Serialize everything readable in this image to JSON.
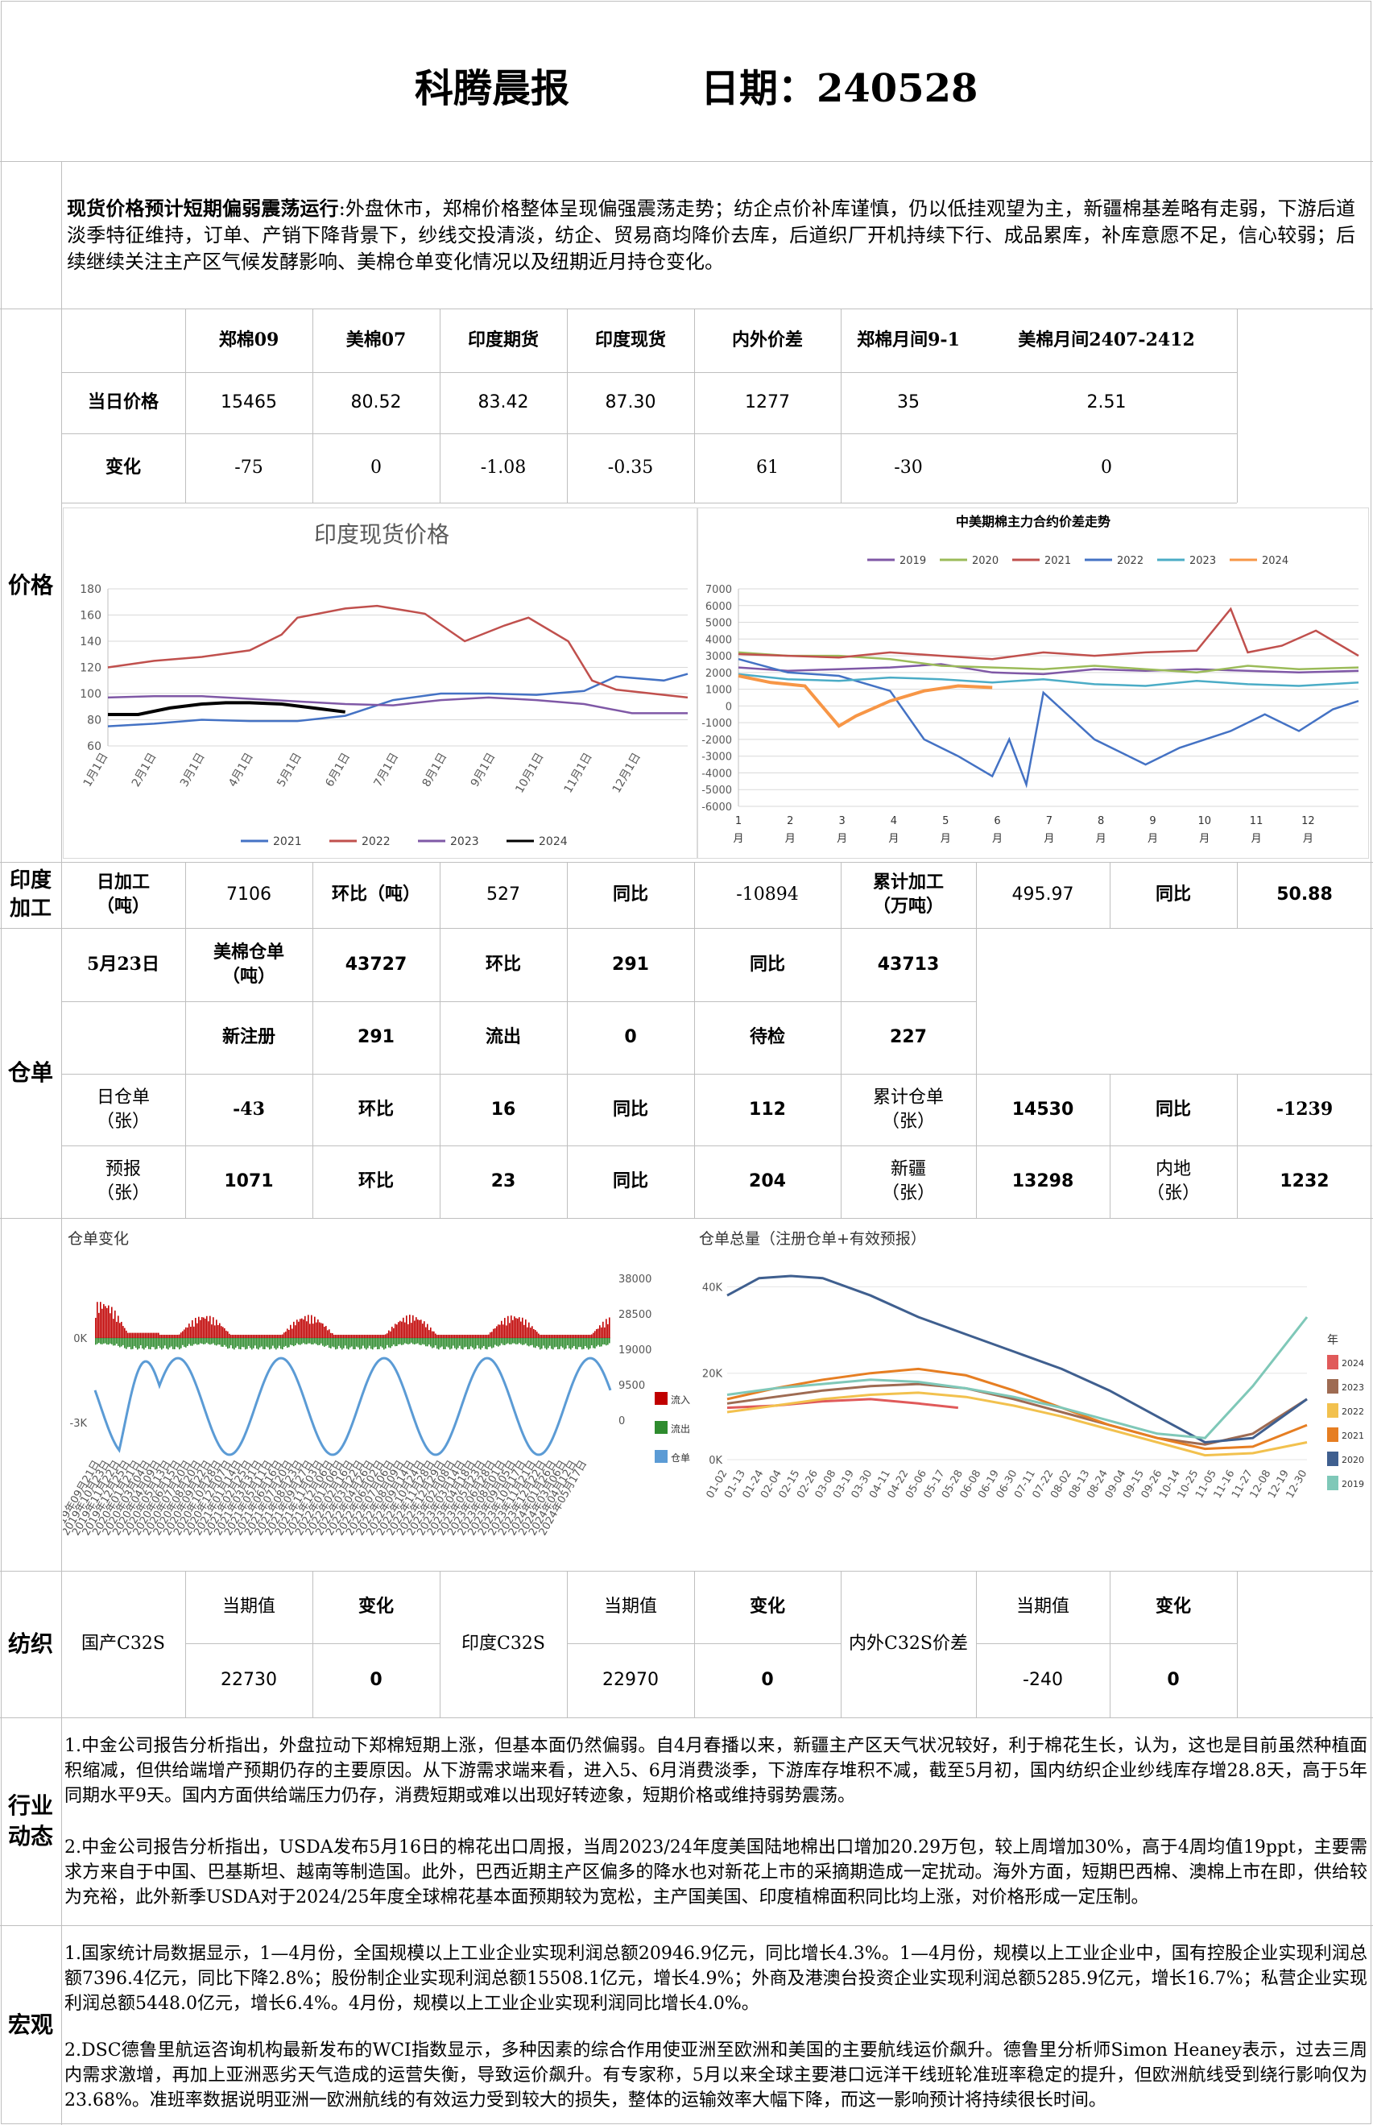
{
  "header": {
    "title": "科腾晨报",
    "date_label": "日期：240528"
  },
  "summary": {
    "lead": "现货价格预计短期偏弱震荡运行",
    "text": ":外盘休市，郑棉价格整体呈现偏强震荡走势；纺企点价补库谨慎，仍以低挂观望为主，新疆棉基差略有走弱，下游后道淡季特征维持，订单、产销下降背景下，纱线交投清淡，纺企、贸易商均降价去库，后道织厂开机持续下行、成品累库，补库意愿不足，信心较弱；后续继续关注主产区气候发酵影响、美棉仓单变化情况以及纽期近月持仓变化。"
  },
  "sections": {
    "price": "价格",
    "processing": "印度加工",
    "warehouse": "仓单",
    "textile": "纺织",
    "industry": "行业动态",
    "macro": "宏观"
  },
  "price_table": {
    "headers": [
      "郑棉09",
      "美棉07",
      "印度期货",
      "印度现货",
      "内外价差",
      "郑棉月间9-1",
      "美棉月间2407-2412"
    ],
    "row1_label": "当日价格",
    "row1": [
      "15465",
      "80.52",
      "83.42",
      "87.30",
      "1277",
      "35",
      "2.51"
    ],
    "row2_label": "变化",
    "row2": [
      "-75",
      "0",
      "-1.08",
      "-0.35",
      "61",
      "-30",
      "0"
    ]
  },
  "india_chart": {
    "chart_data": {
      "type": "line",
      "title": "印度现货价格",
      "x_ticks": [
        "1月1日",
        "2月1日",
        "3月1日",
        "4月1日",
        "5月1日",
        "6月1日",
        "7月1日",
        "8月1日",
        "9月1日",
        "10月1日",
        "11月1日",
        "12月1日"
      ],
      "ylim": [
        60,
        180
      ],
      "y_ticks": [
        60,
        80,
        100,
        120,
        140,
        160,
        180
      ],
      "legend_position": "bottom",
      "series": [
        {
          "name": "2021",
          "color": "#4472c4",
          "x": [
            1,
            30,
            60,
            90,
            120,
            150,
            180,
            210,
            240,
            270,
            300,
            320,
            350,
            365
          ],
          "y": [
            75,
            77,
            80,
            79,
            79,
            83,
            95,
            100,
            100,
            99,
            102,
            113,
            110,
            115
          ]
        },
        {
          "name": "2022",
          "color": "#c0504d",
          "x": [
            1,
            30,
            60,
            90,
            110,
            120,
            150,
            170,
            200,
            225,
            250,
            265,
            290,
            305,
            320,
            350,
            365
          ],
          "y": [
            120,
            125,
            128,
            133,
            145,
            158,
            165,
            167,
            161,
            140,
            152,
            158,
            140,
            110,
            103,
            99,
            97
          ]
        },
        {
          "name": "2023",
          "color": "#7f58a6",
          "x": [
            1,
            30,
            60,
            90,
            120,
            150,
            180,
            210,
            240,
            270,
            300,
            330,
            365
          ],
          "y": [
            97,
            98,
            98,
            96,
            94,
            92,
            91,
            95,
            97,
            95,
            92,
            85,
            85
          ]
        },
        {
          "name": "2024",
          "color": "#000000",
          "x": [
            1,
            20,
            40,
            60,
            75,
            90,
            110,
            130,
            150
          ],
          "y": [
            84,
            84,
            89,
            92,
            93,
            93,
            92,
            89,
            86
          ]
        }
      ]
    }
  },
  "spread_chart": {
    "chart_data": {
      "type": "line",
      "title": "中美期棉主力合约价差走势",
      "x_ticks": [
        "1\n月",
        "2\n月",
        "3\n月",
        "4\n月",
        "5\n月",
        "6\n月",
        "7\n月",
        "8\n月",
        "9\n月",
        "10\n月",
        "11\n月",
        "12\n月"
      ],
      "ylim": [
        -6000,
        7000
      ],
      "y_ticks": [
        -6000,
        -5000,
        -4000,
        -3000,
        -2000,
        -1000,
        0,
        1000,
        2000,
        3000,
        4000,
        5000,
        6000,
        7000
      ],
      "legend_position": "top",
      "series": [
        {
          "name": "2019",
          "color": "#7f58a6",
          "x": [
            1,
            30,
            60,
            90,
            120,
            150,
            180,
            210,
            240,
            270,
            300,
            330,
            365
          ],
          "y": [
            2300,
            2100,
            2200,
            2300,
            2500,
            2000,
            1900,
            2200,
            2100,
            2200,
            2100,
            2000,
            2100
          ]
        },
        {
          "name": "2020",
          "color": "#9bbb59",
          "x": [
            1,
            30,
            60,
            90,
            120,
            150,
            180,
            210,
            240,
            270,
            300,
            330,
            365
          ],
          "y": [
            3200,
            3000,
            3000,
            2800,
            2400,
            2300,
            2200,
            2400,
            2200,
            2000,
            2400,
            2200,
            2300
          ]
        },
        {
          "name": "2021",
          "color": "#c0504d",
          "x": [
            1,
            30,
            60,
            90,
            120,
            150,
            180,
            210,
            240,
            270,
            290,
            300,
            320,
            340,
            365
          ],
          "y": [
            3100,
            3000,
            2900,
            3200,
            3000,
            2800,
            3200,
            3000,
            3200,
            3300,
            5800,
            3200,
            3600,
            4500,
            3000
          ]
        },
        {
          "name": "2022",
          "color": "#4472c4",
          "x": [
            1,
            30,
            60,
            90,
            110,
            130,
            150,
            160,
            170,
            180,
            210,
            240,
            260,
            290,
            310,
            330,
            350,
            365
          ],
          "y": [
            2800,
            2000,
            1800,
            900,
            -2000,
            -3000,
            -4200,
            -2000,
            -4700,
            800,
            -2000,
            -3500,
            -2500,
            -1500,
            -500,
            -1500,
            -200,
            300
          ]
        },
        {
          "name": "2023",
          "color": "#4bacc6",
          "x": [
            1,
            30,
            60,
            90,
            120,
            150,
            180,
            210,
            240,
            270,
            300,
            330,
            365
          ],
          "y": [
            1900,
            1600,
            1500,
            1700,
            1600,
            1400,
            1600,
            1300,
            1200,
            1500,
            1300,
            1200,
            1400
          ]
        },
        {
          "name": "2024",
          "color": "#f79646",
          "x": [
            1,
            20,
            40,
            60,
            70,
            90,
            110,
            130,
            150
          ],
          "y": [
            1800,
            1400,
            1200,
            -1200,
            -600,
            300,
            900,
            1200,
            1100
          ]
        }
      ]
    }
  },
  "processing": {
    "daily_label": "日加工\n（吨）",
    "daily": "7106",
    "mom_label": "环比（吨）",
    "mom": "527",
    "yoy_label": "同比",
    "yoy": "-10894",
    "cum_label": "累计加工\n（万吨）",
    "cum": "495.97",
    "cum_yoy_label": "同比",
    "cum_yoy": "50.88"
  },
  "warehouse": {
    "date": "5月23日",
    "us_label": "美棉仓单\n（吨）",
    "us": "43727",
    "us_mom_label": "环比",
    "us_mom": "291",
    "us_yoy_label": "同比",
    "us_yoy": "43713",
    "new_label": "新注册",
    "new": "291",
    "out_label": "流出",
    "out": "0",
    "pending_label": "待检",
    "pending": "227",
    "daily_label": "日仓单\n（张）",
    "daily": "-43",
    "daily_mom_label": "环比",
    "daily_mom": "16",
    "daily_yoy_label": "同比",
    "daily_yoy": "112",
    "cum_label": "累计仓单\n（张）",
    "cum": "14530",
    "cum_yoy_label": "同比",
    "cum_yoy": "-1239",
    "forecast_label": "预报\n（张）",
    "forecast": "1071",
    "forecast_mom_label": "环比",
    "forecast_mom": "23",
    "forecast_yoy_label": "同比",
    "forecast_yoy": "204",
    "xinjiang_label": "新疆\n（张）",
    "xinjiang": "13298",
    "inland_label": "内地\n（张）",
    "inland": "1232"
  },
  "wr_change_chart": {
    "title": "仓单变化",
    "left_ticks": [
      "0K",
      "-3K"
    ],
    "right_ticks": [
      "38000",
      "28500",
      "19000",
      "9500",
      "0"
    ],
    "legend": [
      {
        "name": "流入",
        "color": "#c00000"
      },
      {
        "name": "流出",
        "color": "#2e8b2e"
      },
      {
        "name": "仓单",
        "color": "#5b9bd5"
      }
    ],
    "x_ticks": [
      "2019年09月21日",
      "2019年10月23日",
      "2019年11月22日",
      "2019年12月25日",
      "2020年01月21日",
      "2020年03月04日",
      "2020年04月09日",
      "2020年05月13日",
      "2020年06月15日",
      "2020年07月20日",
      "2020年08月20日",
      "2020年09月22日",
      "2020年10月28日",
      "2020年12月07日",
      "2021年01月14日",
      "2021年02月25日",
      "2021年03月31日",
      "2021年05月11日",
      "2021年06月16日",
      "2021年07月20日",
      "2021年08月23日",
      "2021年09月27日",
      "2021年11月03日",
      "2021年12月06日",
      "2022年01月06日",
      "2022年02月16日",
      "2022年03月22日",
      "2022年04月26日",
      "2022年06月02日",
      "2022年07月06日",
      "2022年08月09日",
      "2022年09月14日",
      "2022年10月24日",
      "2022年11月28日",
      "2022年12月29日",
      "2023年02月08日",
      "2023年03月14日",
      "2023年04月18日",
      "2023年05月23日",
      "2023年06月28日",
      "2023年08月01日",
      "2023年09月05日",
      "2023年10月17日",
      "2023年11月21日",
      "2023年12月22日",
      "2024年01月26日",
      "2024年03月06日",
      "2024年04月12日",
      "2024年05月17日"
    ]
  },
  "wr_total_chart": {
    "title": "仓单总量（注册仓单+有效预报）",
    "y_ticks": [
      "40K",
      "20K",
      "0K"
    ],
    "legend_title": "年",
    "x_ticks": [
      "01-02",
      "01-13",
      "01-24",
      "02-04",
      "02-15",
      "02-26",
      "03-08",
      "03-19",
      "03-30",
      "04-11",
      "04-22",
      "05-06",
      "05-17",
      "05-28",
      "06-08",
      "06-19",
      "06-30",
      "07-11",
      "07-22",
      "08-02",
      "08-13",
      "08-24",
      "09-04",
      "09-15",
      "09-26",
      "10-14",
      "10-25",
      "11-05",
      "11-16",
      "11-27",
      "12-08",
      "12-19",
      "12-30"
    ],
    "series": [
      {
        "name": "2024",
        "color": "#e05a5a",
        "x": [
          0,
          30,
          60,
          90,
          120,
          145
        ],
        "y": [
          12000,
          12500,
          13500,
          14000,
          13000,
          12000
        ]
      },
      {
        "name": "2023",
        "color": "#9e6b52",
        "x": [
          0,
          30,
          60,
          90,
          120,
          150,
          180,
          210,
          240,
          270,
          300,
          330,
          364
        ],
        "y": [
          13000,
          14500,
          16000,
          17000,
          17500,
          16500,
          14000,
          11000,
          8000,
          5000,
          3500,
          6000,
          14000
        ]
      },
      {
        "name": "2022",
        "color": "#f2c14e",
        "x": [
          0,
          30,
          60,
          90,
          120,
          150,
          180,
          210,
          240,
          270,
          300,
          330,
          364
        ],
        "y": [
          11000,
          12500,
          14000,
          15000,
          15500,
          14500,
          12500,
          10000,
          7000,
          4000,
          1000,
          1500,
          4000
        ]
      },
      {
        "name": "2021",
        "color": "#e67e22",
        "x": [
          0,
          30,
          60,
          90,
          120,
          150,
          180,
          210,
          240,
          270,
          300,
          330,
          364
        ],
        "y": [
          14000,
          16500,
          18500,
          20000,
          21000,
          19500,
          16000,
          12000,
          8000,
          5000,
          2500,
          3000,
          8000
        ]
      },
      {
        "name": "2020",
        "color": "#3f5f8f",
        "x": [
          0,
          20,
          40,
          60,
          90,
          120,
          150,
          180,
          210,
          240,
          270,
          300,
          330,
          364
        ],
        "y": [
          38000,
          42000,
          42500,
          42000,
          38000,
          33000,
          29000,
          25000,
          21000,
          16000,
          10000,
          4000,
          5000,
          14000
        ]
      },
      {
        "name": "2019",
        "color": "#7fc8b8",
        "x": [
          0,
          30,
          60,
          90,
          120,
          150,
          180,
          210,
          240,
          270,
          300,
          330,
          364
        ],
        "y": [
          15000,
          16500,
          17500,
          18500,
          18000,
          16500,
          14500,
          12000,
          9000,
          6000,
          5000,
          17000,
          33000
        ]
      }
    ]
  },
  "textile": {
    "domestic_label": "国产C32S",
    "india_label": "印度C32S",
    "spread_label": "内外C32S价差",
    "current_label": "当期值",
    "change_label": "变化",
    "domestic_value": "22730",
    "domestic_change": "0",
    "india_value": "22970",
    "india_change": "0",
    "spread_value": "-240",
    "spread_change": "0"
  },
  "industry": {
    "p1": "1.中金公司报告分析指出，外盘拉动下郑棉短期上涨，但基本面仍然偏弱。自4月春播以来，新疆主产区天气状况较好，利于棉花生长，认为，这也是目前虽然种植面积缩减，但供给端增产预期仍存的主要原因。从下游需求端来看，进入5、6月消费淡季，下游库存堆积不减，截至5月初，国内纺织企业纱线库存增28.8天，高于5年同期水平9天。国内方面供给端压力仍存，消费短期或难以出现好转迹象，短期价格或维持弱势震荡。",
    "p2": "2.中金公司报告分析指出，USDA发布5月16日的棉花出口周报，当周2023/24年度美国陆地棉出口增加20.29万包，较上周增加30%，高于4周均值19ppt，主要需求方来自于中国、巴基斯坦、越南等制造国。此外，巴西近期主产区偏多的降水也对新花上市的采摘期造成一定扰动。海外方面，短期巴西棉、澳棉上市在即，供给较为充裕，此外新季USDA对于2024/25年度全球棉花基本面预期较为宽松，主产国美国、印度植棉面积同比均上涨，对价格形成一定压制。"
  },
  "macro": {
    "p1": "1.国家统计局数据显示，1—4月份，全国规模以上工业企业实现利润总额20946.9亿元，同比增长4.3%。1—4月份，规模以上工业企业中，国有控股企业实现利润总额7396.4亿元，同比下降2.8%；股份制企业实现利润总额15508.1亿元，增长4.9%；外商及港澳台投资企业实现利润总额5285.9亿元，增长16.7%；私营企业实现利润总额5448.0亿元，增长6.4%。4月份，规模以上工业企业实现利润同比增长4.0%。",
    "p2": "2.DSC德鲁里航运咨询机构最新发布的WCI指数显示，多种因素的综合作用使亚洲至欧洲和美国的主要航线运价飙升。德鲁里分析师Simon Heaney表示，过去三周内需求激增，再加上亚洲恶劣天气造成的运营失衡，导致运价飙升。有专家称，5月以来全球主要港口远洋干线班轮准班率稳定的提升，但欧洲航线受到绕行影响仅为23.68%。准班率数据说明亚洲一欧洲航线的有效运力受到较大的损失，整体的运输效率大幅下降，而这一影响预计将持续很长时间。"
  }
}
